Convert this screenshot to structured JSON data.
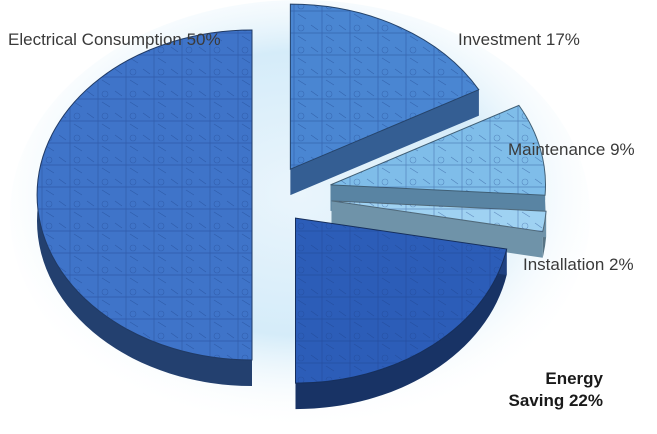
{
  "chart_data": {
    "type": "pie",
    "title": "",
    "slices": [
      {
        "label": "Electrical Consumption",
        "value": 50,
        "display": "Electrical Consumption 50%",
        "color": "#3f74c9"
      },
      {
        "label": "Investment",
        "value": 17,
        "display": "Investment 17%",
        "color": "#4a86d2"
      },
      {
        "label": "Maintenance",
        "value": 9,
        "display": "Maintenance 9%",
        "color": "#7fbde9"
      },
      {
        "label": "Installation",
        "value": 2,
        "display": "Installation 2%",
        "color": "#9fd2f2"
      },
      {
        "label": "Energy Saving",
        "value": 22,
        "display_line1": "Energy",
        "display_line2": "Saving 22%",
        "color": "#2c5db8"
      }
    ]
  }
}
